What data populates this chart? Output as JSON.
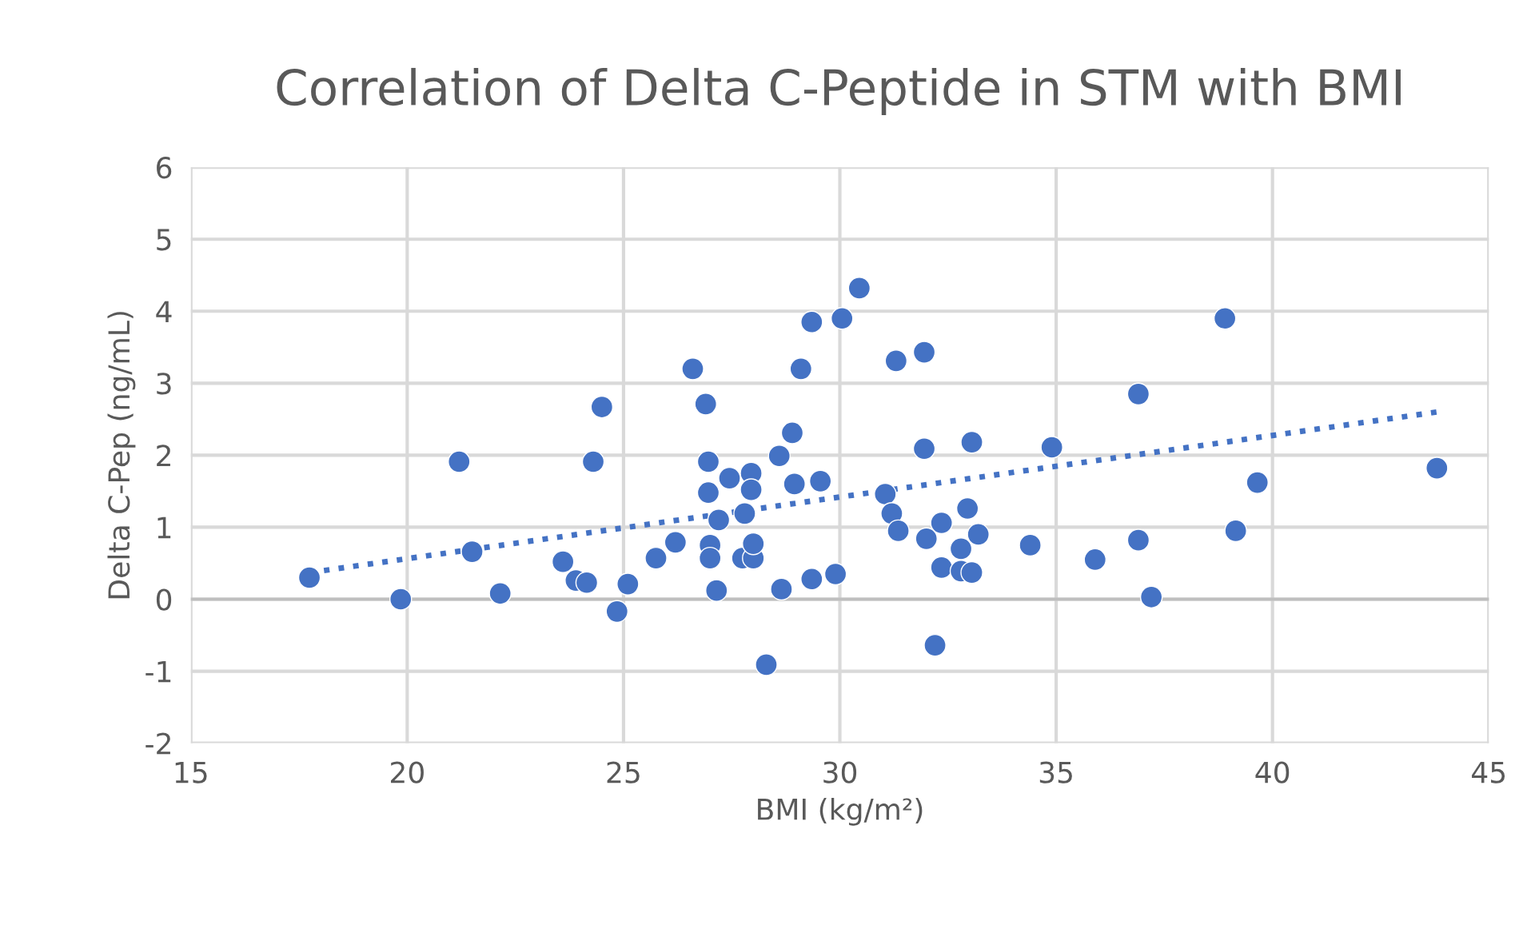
{
  "chart_data": {
    "type": "scatter",
    "title": "Correlation of Delta C-Peptide in STM with BMI",
    "xlabel": "BMI (kg/m²)",
    "ylabel": "Delta C-Pep (ng/mL)",
    "xlim": [
      15,
      45
    ],
    "xticks": [
      15,
      20,
      25,
      30,
      35,
      40,
      45
    ],
    "ylim": [
      -2,
      6
    ],
    "yticks": [
      -2,
      -1,
      0,
      1,
      2,
      3,
      4,
      5,
      6
    ],
    "grid": true,
    "legend": false,
    "series": [
      {
        "color": "#4472c4",
        "marker": "circle",
        "x": [
          17.74,
          19.85,
          21.2,
          21.5,
          22.15,
          23.6,
          23.9,
          24.15,
          24.3,
          24.5,
          24.85,
          25.1,
          25.75,
          26.2,
          26.6,
          26.9,
          26.96,
          26.96,
          27.0,
          27.0,
          27.15,
          27.2,
          27.45,
          27.75,
          27.8,
          27.95,
          27.95,
          28.0,
          28.0,
          28.3,
          28.6,
          28.65,
          28.9,
          28.95,
          29.1,
          29.35,
          29.35,
          29.55,
          29.9,
          30.05,
          30.45,
          31.05,
          31.2,
          31.35,
          31.3,
          31.95,
          31.95,
          32.0,
          32.2,
          32.35,
          32.35,
          32.8,
          32.8,
          32.95,
          33.05,
          33.05,
          33.2,
          34.4,
          34.9,
          35.9,
          36.9,
          36.9,
          37.2,
          38.9,
          39.15,
          39.65,
          43.8
        ],
        "values": [
          0.3,
          0.0,
          1.91,
          0.66,
          0.08,
          0.52,
          0.26,
          0.23,
          1.91,
          2.67,
          -0.17,
          0.21,
          0.57,
          0.79,
          3.2,
          2.71,
          1.91,
          1.48,
          0.75,
          0.57,
          0.12,
          1.1,
          1.68,
          0.57,
          1.19,
          1.75,
          1.52,
          0.57,
          0.77,
          -0.91,
          1.99,
          0.14,
          2.31,
          1.6,
          3.2,
          0.28,
          3.85,
          1.64,
          0.35,
          3.9,
          4.32,
          1.46,
          1.19,
          0.95,
          3.31,
          3.43,
          2.09,
          0.84,
          -0.64,
          1.06,
          0.44,
          0.39,
          0.7,
          1.26,
          2.18,
          0.37,
          0.9,
          0.75,
          2.11,
          0.55,
          2.85,
          0.82,
          0.03,
          3.9,
          0.95,
          1.62,
          1.82
        ]
      },
      {
        "type": "line",
        "color": "#4472c4",
        "line_style": "dotted",
        "marker": "none",
        "x": [
          17.74,
          43.8
        ],
        "values": [
          0.37,
          2.6
        ]
      }
    ]
  }
}
